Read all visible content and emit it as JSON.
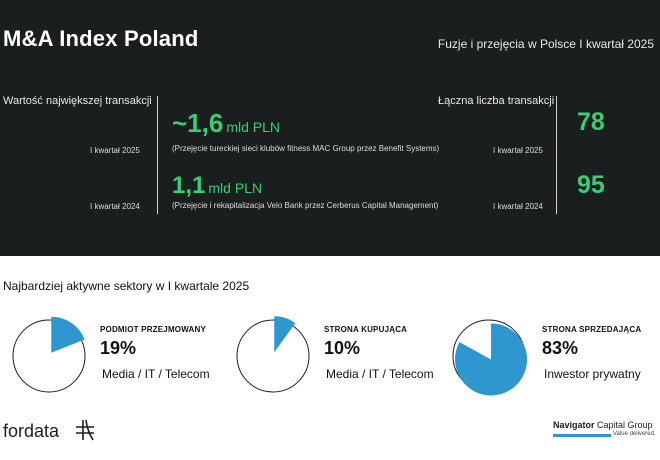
{
  "header": {
    "title": "M&A Index Poland",
    "subtitle": "Fuzje i przejęcia w Polsce I kwartał 2025"
  },
  "largest": {
    "label": "Wartość największej transakcji",
    "rows": [
      {
        "quarter": "I kwartał 2025",
        "value": "~1,6",
        "unit": "mld PLN",
        "note": "(Przejęcie tureckiej sieci klubów fitness MAC Group przez Benefit Systems)"
      },
      {
        "quarter": "I kwartał 2024",
        "value": "1,1",
        "unit": "mld PLN",
        "note": "(Przejęcie i rekapitalizacja Velo Bank przez Cerberus Capital Management)"
      }
    ]
  },
  "total": {
    "label": "Łączna liczba transakcji",
    "rows": [
      {
        "quarter": "I kwartał 2025",
        "value": "78"
      },
      {
        "quarter": "I kwartał 2024",
        "value": "95"
      }
    ]
  },
  "sectors": {
    "title": "Najbardziej aktywne sektory w I kwartale 2025",
    "cards": [
      {
        "caption": "PODMIOT PRZEJMOWANY",
        "percent": "19%",
        "share": 0.19,
        "sector": "Media / IT / Telecom"
      },
      {
        "caption": "STRONA KUPUJĄCA",
        "percent": "10%",
        "share": 0.1,
        "sector": "Media / IT / Telecom"
      },
      {
        "caption": "STRONA SPRZEDAJĄCA",
        "percent": "83%",
        "share": 0.83,
        "sector": "Inwestor prywatny"
      }
    ],
    "accent": "#2f97d0"
  },
  "footer": {
    "fordata": "fordata",
    "navigator_bold": "Navigator",
    "navigator_rest": "Capital Group",
    "navigator_tag": "Value delivered."
  },
  "colors": {
    "dark_bg": "#1b1e1f",
    "green": "#35d074",
    "blue": "#2f97d0"
  }
}
